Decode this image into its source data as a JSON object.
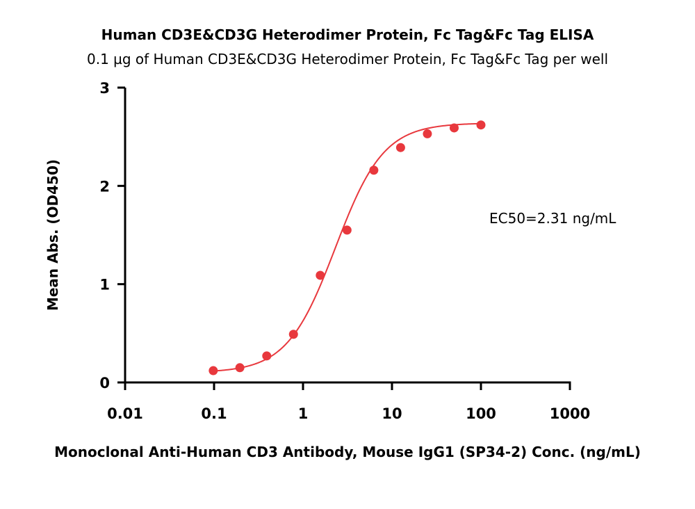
{
  "chart_data": {
    "type": "scatter",
    "title": "Human CD3E&CD3G Heterodimer Protein, Fc Tag&Fc Tag ELISA",
    "subtitle": "0.1 µg of Human CD3E&CD3G Heterodimer Protein, Fc Tag&Fc Tag per well",
    "xlabel": "Monoclonal Anti-Human CD3 Antibody, Mouse IgG1 (SP34-2) Conc. (ng/mL)",
    "ylabel": "Mean Abs. (OD450)",
    "x_scale": "log",
    "xlim": [
      0.01,
      1000
    ],
    "ylim": [
      0,
      3
    ],
    "x_ticks": [
      0.01,
      0.1,
      1,
      10,
      100,
      1000
    ],
    "x_tick_labels": [
      "0.01",
      "0.1",
      "1",
      "10",
      "100",
      "1000"
    ],
    "y_ticks": [
      0,
      1,
      2,
      3
    ],
    "y_tick_labels": [
      "0",
      "1",
      "2",
      "3"
    ],
    "grid": false,
    "annotation": "EC50=2.31 ng/mL",
    "series": [
      {
        "color": "#e8383d",
        "x": [
          0.098,
          0.195,
          0.391,
          0.781,
          1.563,
          3.125,
          6.25,
          12.5,
          25,
          50,
          100
        ],
        "y": [
          0.12,
          0.15,
          0.27,
          0.49,
          1.09,
          1.55,
          2.16,
          2.39,
          2.53,
          2.59,
          2.62
        ]
      }
    ],
    "fit_curve": {
      "model": "4PL",
      "bottom": 0.1,
      "top": 2.64,
      "ec50": 2.31,
      "hill": 1.6,
      "color": "#e8383d"
    }
  }
}
